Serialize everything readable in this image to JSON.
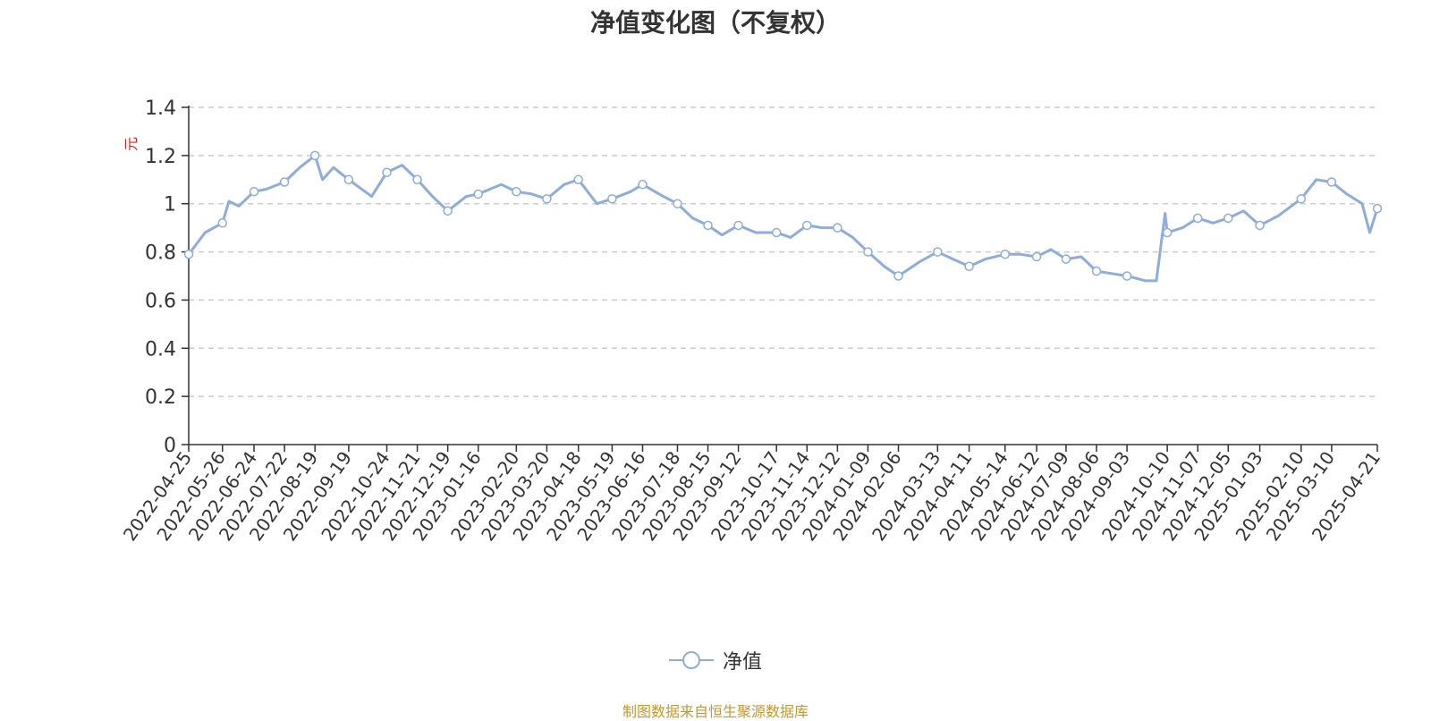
{
  "title": "净值变化图（不复权）",
  "footer": "制图数据来自恒生聚源数据库",
  "colors": {
    "line": "#8eacdc",
    "axis": "#333333",
    "grid": "#cccccc",
    "ylabel": "#e02020",
    "footer": "#c8962c"
  },
  "chart_data": {
    "type": "line",
    "ylabel": "元",
    "ylim": [
      0,
      1.4
    ],
    "yticks": [
      "0",
      "0.2",
      "0.4",
      "0.6",
      "0.8",
      "1",
      "1.2",
      "1.4"
    ],
    "grid": true,
    "legend_position": "bottom",
    "xticks": [
      "2022-04-25",
      "2022-05-26",
      "2022-06-24",
      "2022-07-22",
      "2022-08-19",
      "2022-09-19",
      "2022-10-24",
      "2022-11-21",
      "2022-12-19",
      "2023-01-16",
      "2023-02-20",
      "2023-03-20",
      "2023-04-18",
      "2023-05-19",
      "2023-06-16",
      "2023-07-18",
      "2023-08-15",
      "2023-09-12",
      "2023-10-17",
      "2023-11-14",
      "2023-12-12",
      "2024-01-09",
      "2024-02-06",
      "2024-03-13",
      "2024-04-11",
      "2024-05-14",
      "2024-06-12",
      "2024-07-09",
      "2024-08-06",
      "2024-09-03",
      "2024-10-10",
      "2024-11-07",
      "2024-12-05",
      "2025-01-03",
      "2025-02-10",
      "2025-03-10",
      "2025-04-21"
    ],
    "series": [
      {
        "name": "净值",
        "x": [
          "2022-04-25",
          "2022-05-10",
          "2022-05-26",
          "2022-06-01",
          "2022-06-10",
          "2022-06-24",
          "2022-07-05",
          "2022-07-22",
          "2022-08-05",
          "2022-08-19",
          "2022-08-26",
          "2022-09-05",
          "2022-09-19",
          "2022-10-10",
          "2022-10-24",
          "2022-11-07",
          "2022-11-21",
          "2022-12-05",
          "2022-12-19",
          "2023-01-05",
          "2023-01-16",
          "2023-02-06",
          "2023-02-20",
          "2023-03-06",
          "2023-03-20",
          "2023-04-05",
          "2023-04-18",
          "2023-05-05",
          "2023-05-19",
          "2023-06-05",
          "2023-06-16",
          "2023-07-05",
          "2023-07-18",
          "2023-08-01",
          "2023-08-15",
          "2023-08-28",
          "2023-09-12",
          "2023-09-28",
          "2023-10-17",
          "2023-10-30",
          "2023-11-14",
          "2023-11-28",
          "2023-12-12",
          "2023-12-26",
          "2024-01-09",
          "2024-01-24",
          "2024-02-06",
          "2024-02-26",
          "2024-03-13",
          "2024-03-27",
          "2024-04-11",
          "2024-04-26",
          "2024-05-14",
          "2024-05-28",
          "2024-06-12",
          "2024-06-25",
          "2024-07-09",
          "2024-07-23",
          "2024-08-06",
          "2024-08-20",
          "2024-09-03",
          "2024-09-20",
          "2024-09-30",
          "2024-10-08",
          "2024-10-10",
          "2024-10-24",
          "2024-11-07",
          "2024-11-21",
          "2024-12-05",
          "2024-12-19",
          "2025-01-03",
          "2025-01-20",
          "2025-02-10",
          "2025-02-24",
          "2025-03-10",
          "2025-03-24",
          "2025-04-07",
          "2025-04-14",
          "2025-04-21"
        ],
        "values": [
          0.79,
          0.88,
          0.92,
          1.01,
          0.99,
          1.05,
          1.06,
          1.09,
          1.15,
          1.2,
          1.1,
          1.15,
          1.1,
          1.03,
          1.13,
          1.16,
          1.1,
          1.03,
          0.97,
          1.03,
          1.04,
          1.08,
          1.05,
          1.04,
          1.02,
          1.08,
          1.1,
          1.0,
          1.02,
          1.05,
          1.08,
          1.03,
          1.0,
          0.94,
          0.91,
          0.87,
          0.91,
          0.88,
          0.88,
          0.86,
          0.91,
          0.9,
          0.9,
          0.86,
          0.8,
          0.74,
          0.7,
          0.76,
          0.8,
          0.77,
          0.74,
          0.77,
          0.79,
          0.79,
          0.78,
          0.81,
          0.77,
          0.78,
          0.72,
          0.71,
          0.7,
          0.68,
          0.68,
          0.96,
          0.88,
          0.9,
          0.94,
          0.92,
          0.94,
          0.97,
          0.91,
          0.95,
          1.02,
          1.1,
          1.09,
          1.04,
          1.0,
          0.88,
          0.98
        ]
      }
    ]
  }
}
